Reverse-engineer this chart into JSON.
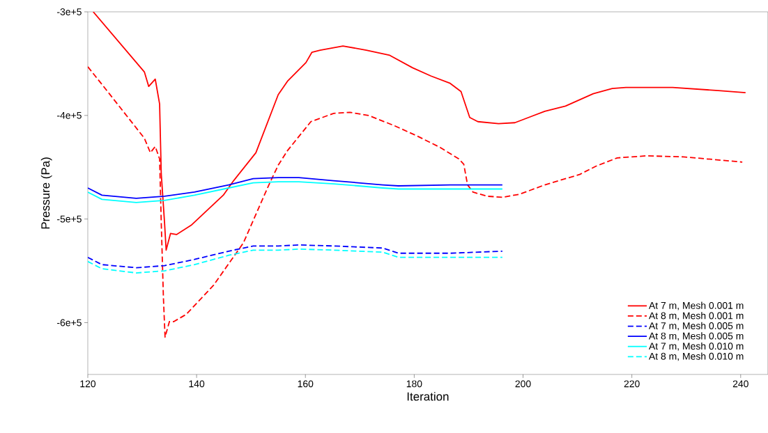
{
  "chart_data": {
    "type": "line",
    "xlabel": "Iteration",
    "ylabel": "Pressure (Pa)",
    "xlim": [
      120,
      245
    ],
    "ylim": [
      -650000,
      -300000
    ],
    "xticks": [
      120,
      140,
      160,
      180,
      200,
      220,
      240
    ],
    "yticks": [
      {
        "value": -300000,
        "label": "-3e+5"
      },
      {
        "value": -400000,
        "label": "-4e+5"
      },
      {
        "value": -500000,
        "label": "-5e+5"
      },
      {
        "value": -600000,
        "label": "-6e+5"
      }
    ],
    "grid": false,
    "legend": "bottom right",
    "series": [
      {
        "name": "At 7 m, Mesh 0.001 m",
        "color": "#ff0000",
        "line_style": "solid",
        "x": [
          121,
          130.4,
          131.2,
          132.4,
          133.2,
          133.5,
          134.1,
          134.4,
          135.2,
          136.3,
          139,
          144.9,
          146.8,
          150.9,
          155,
          156.7,
          160.1,
          161.2,
          162.7,
          166.9,
          171.2,
          175.5,
          179.7,
          183.1,
          186.6,
          188.6,
          190.2,
          191.7,
          195.5,
          198.5,
          204,
          207.8,
          212.9,
          216.4,
          218.9,
          227.5,
          235.9,
          240.9
        ],
        "values": [
          -300000,
          -358000,
          -372000,
          -365000,
          -389000,
          -456000,
          -503000,
          -530000,
          -514000,
          -515000,
          -506000,
          -477000,
          -463000,
          -436000,
          -380000,
          -367000,
          -349000,
          -339000,
          -337000,
          -333000,
          -337000,
          -342000,
          -354000,
          -362000,
          -369000,
          -377000,
          -402000,
          -406000,
          -408000,
          -407000,
          -396000,
          -391000,
          -379000,
          -374000,
          -373000,
          -373000,
          -376000,
          -378000
        ]
      },
      {
        "name": "At 8 m, Mesh 0.001 m",
        "color": "#ff0000",
        "line_style": "dashed",
        "x": [
          120,
          122.6,
          126.8,
          130.4,
          131.5,
          132.4,
          133.2,
          133.5,
          133.9,
          134.2,
          135,
          135.8,
          138.1,
          143.1,
          148.6,
          153.2,
          155,
          156.7,
          161,
          165.2,
          168.2,
          171.6,
          176.4,
          180.6,
          184.8,
          188.2,
          189.1,
          189.8,
          190.8,
          193.4,
          196.3,
          199.4,
          204,
          210.4,
          213.4,
          217.3,
          222.7,
          229.5,
          240.3
        ],
        "values": [
          -353000,
          -370000,
          -398000,
          -422000,
          -436000,
          -430000,
          -442000,
          -503000,
          -576000,
          -614000,
          -599000,
          -599000,
          -592000,
          -564000,
          -523000,
          -468000,
          -448000,
          -434000,
          -406000,
          -398000,
          -397000,
          -400000,
          -410000,
          -420000,
          -431000,
          -442000,
          -447000,
          -467000,
          -474000,
          -478000,
          -479000,
          -476000,
          -467000,
          -457000,
          -449000,
          -441000,
          -439000,
          -440000,
          -445000
        ]
      },
      {
        "name": "At 7 m, Mesh 0.005 m",
        "color": "#0000ff",
        "line_style": "dashed",
        "x": [
          120,
          122.6,
          128.9,
          134.1,
          139.6,
          145.9,
          150.4,
          155,
          158.8,
          165.2,
          174.2,
          177.1,
          186.6,
          196.2
        ],
        "values": [
          -537000,
          -544000,
          -547000,
          -545000,
          -539000,
          -531000,
          -526000,
          -526000,
          -525000,
          -526000,
          -528000,
          -533000,
          -533000,
          -531000
        ]
      },
      {
        "name": "At 8 m, Mesh 0.005 m",
        "color": "#0000ff",
        "line_style": "solid",
        "x": [
          120,
          122.6,
          128.9,
          134.1,
          139.6,
          145.9,
          150.4,
          155,
          158.8,
          165.2,
          174.2,
          177.1,
          186.6,
          196.2
        ],
        "values": [
          -470000,
          -477000,
          -480000,
          -478000,
          -474000,
          -467000,
          -461000,
          -460000,
          -460000,
          -463000,
          -467000,
          -468000,
          -467000,
          -467000
        ]
      },
      {
        "name": "At 7 m, Mesh 0.010 m",
        "color": "#00ffff",
        "line_style": "solid",
        "x": [
          120,
          122.6,
          128.9,
          134.1,
          139.6,
          145.9,
          150.4,
          155,
          158.8,
          165.2,
          174.2,
          177.1,
          186.6,
          196.2
        ],
        "values": [
          -474000,
          -481000,
          -484000,
          -482000,
          -477000,
          -470000,
          -465000,
          -464000,
          -464000,
          -466000,
          -470000,
          -471000,
          -471000,
          -471000
        ]
      },
      {
        "name": "At 8 m, Mesh 0.010 m",
        "color": "#00ffff",
        "line_style": "dashed",
        "x": [
          120,
          122.6,
          128.9,
          134.1,
          139.6,
          145.9,
          150.4,
          155,
          158.8,
          165.2,
          174.2,
          177.1,
          186.6,
          196.2
        ],
        "values": [
          -541000,
          -548000,
          -552000,
          -550000,
          -544000,
          -535000,
          -530000,
          -530000,
          -529000,
          -530000,
          -532000,
          -537000,
          -537000,
          -537000
        ]
      }
    ]
  }
}
